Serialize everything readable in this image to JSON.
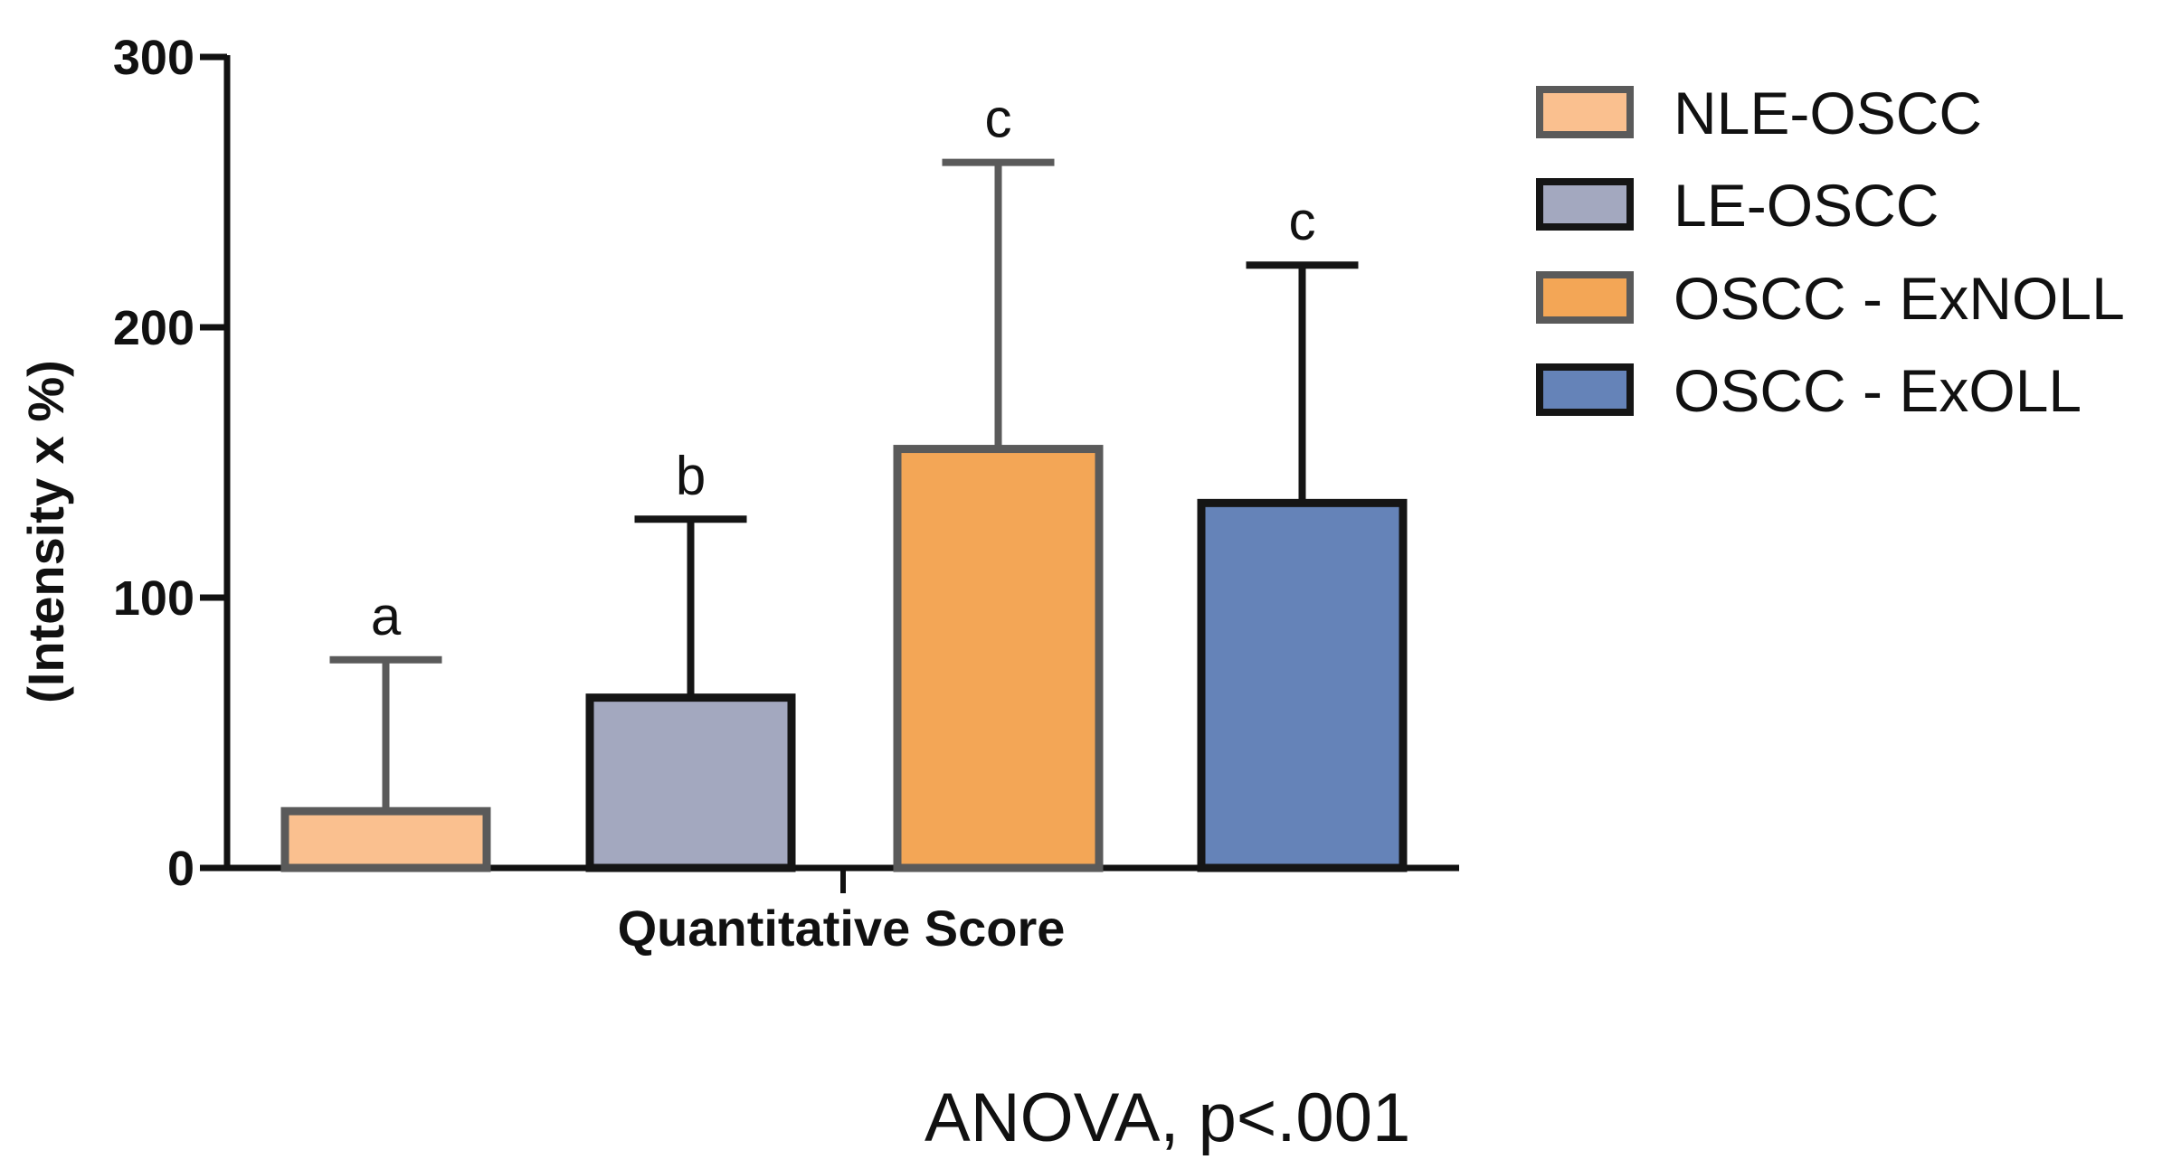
{
  "chart_data": {
    "type": "bar",
    "title": "",
    "xlabel": "Quantitative Score",
    "ylabel": "(Intensity x %)",
    "ylim": [
      0,
      300
    ],
    "yticks": [
      0,
      100,
      200,
      300
    ],
    "grid": false,
    "legend_position": "right",
    "series": [
      {
        "name": "NLE-OSCC",
        "value": 21,
        "error": 56,
        "sig_letter": "a",
        "fill": "#FAC08F",
        "edge": "#5A5A5A"
      },
      {
        "name": "LE-OSCC",
        "value": 63,
        "error": 66,
        "sig_letter": "b",
        "fill": "#A3A8BF",
        "edge": "#151515"
      },
      {
        "name": "OSCC - ExNOLL",
        "value": 155,
        "error": 106,
        "sig_letter": "c",
        "fill": "#F3A656",
        "edge": "#5A5A5A"
      },
      {
        "name": "OSCC - ExOLL",
        "value": 135,
        "error": 88,
        "sig_letter": "c",
        "fill": "#6583B8",
        "edge": "#151515"
      }
    ],
    "annotation": "ANOVA, p<.001"
  }
}
